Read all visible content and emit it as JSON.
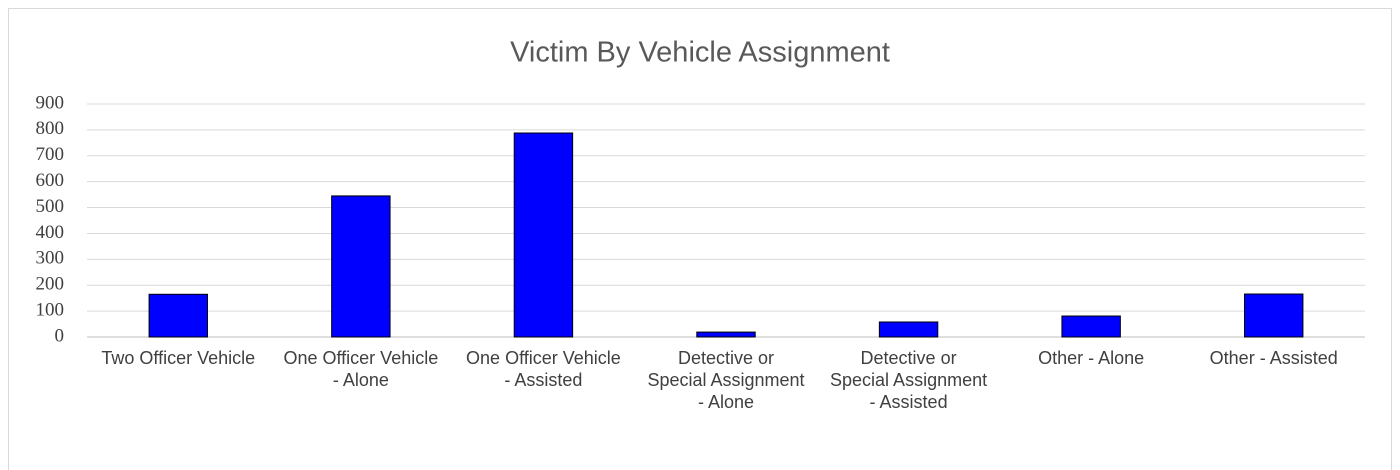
{
  "chart_data": {
    "type": "bar",
    "title": "Victim By Vehicle Assignment",
    "categories": [
      "Two Officer Vehicle",
      "One Officer Vehicle - Alone",
      "One Officer Vehicle - Assisted",
      "Detective or Special Assignment - Alone",
      "Detective or Special Assignment - Assisted",
      "Other - Alone",
      "Other - Assisted"
    ],
    "values": [
      165,
      545,
      788,
      19,
      58,
      81,
      166
    ],
    "color": "#0000ff",
    "ylim": [
      0,
      900
    ],
    "yticks": [
      0,
      100,
      200,
      300,
      400,
      500,
      600,
      700,
      800,
      900
    ],
    "grid": true
  }
}
